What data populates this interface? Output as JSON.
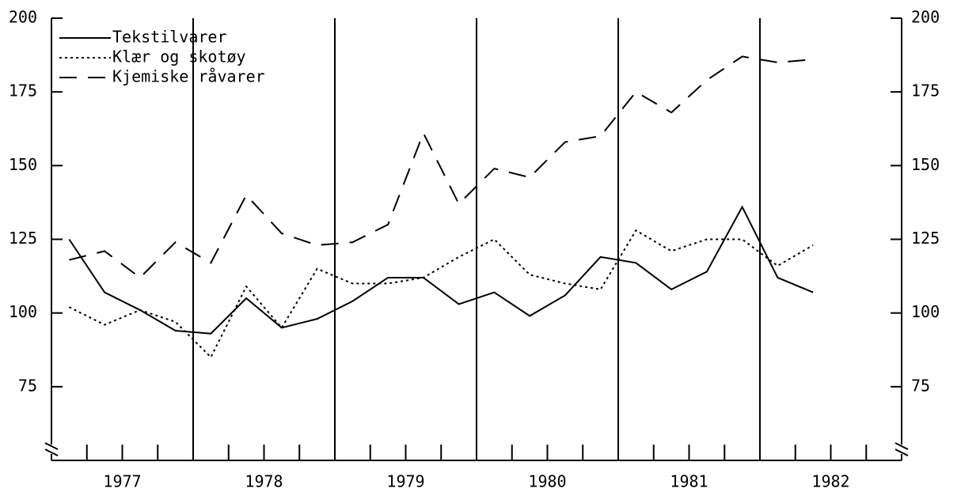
{
  "chart_data": {
    "type": "line",
    "x": [
      1977.125,
      1977.375,
      1977.625,
      1977.875,
      1978.125,
      1978.375,
      1978.625,
      1978.875,
      1979.125,
      1979.375,
      1979.625,
      1979.875,
      1980.125,
      1980.375,
      1980.625,
      1980.875,
      1981.125,
      1981.375,
      1981.625,
      1981.875,
      1982.125,
      1982.375
    ],
    "series": [
      {
        "name": "Tekstilvarer",
        "color": "#000",
        "dash": "solid",
        "values": [
          125,
          107,
          101,
          94,
          93,
          105,
          95,
          98,
          104,
          112,
          112,
          103,
          107,
          99,
          106,
          119,
          117,
          108,
          114,
          136,
          112,
          107
        ]
      },
      {
        "name": "Klær og skotøy",
        "color": "#000",
        "dash": "dotted",
        "values": [
          102,
          96,
          101,
          97,
          85,
          109,
          95,
          115,
          110,
          110,
          112,
          119,
          125,
          113,
          110,
          108,
          128,
          121,
          125,
          125,
          116,
          123
        ]
      },
      {
        "name": "Kjemiske råvarer",
        "color": "#000",
        "dash": "dashed",
        "values": [
          118,
          121,
          112,
          124,
          117,
          140,
          127,
          123,
          124,
          130,
          161,
          137,
          149,
          146,
          158,
          160,
          175,
          168,
          179,
          187,
          185,
          186
        ]
      }
    ],
    "xlim": [
      1977,
      1983
    ],
    "xticks": [
      {
        "value": 1977.5,
        "label": "1977"
      },
      {
        "value": 1978.5,
        "label": "1978"
      },
      {
        "value": 1979.5,
        "label": "1979"
      },
      {
        "value": 1980.5,
        "label": "1980"
      },
      {
        "value": 1981.5,
        "label": "1981"
      },
      {
        "value": 1982.5,
        "label": "1982"
      }
    ],
    "ylim": [
      50,
      200
    ],
    "yticks": [
      75,
      100,
      125,
      150,
      175,
      200
    ],
    "legend": "upper left"
  }
}
